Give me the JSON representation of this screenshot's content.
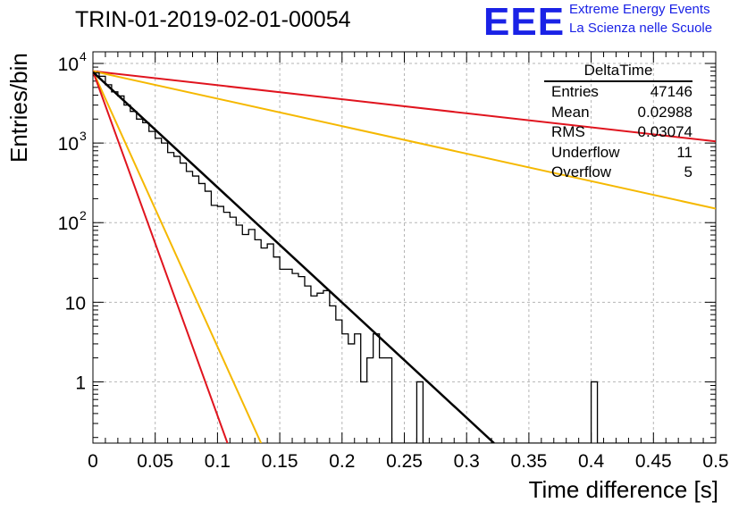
{
  "header": {
    "run_title": "TRIN-01-2019-02-01-00054",
    "logo_text": "EEE",
    "org_line1": "Extreme Energy Events",
    "org_line2": "La Scienza nelle Scuole"
  },
  "stats": {
    "title": "DeltaTime",
    "rows": [
      {
        "label": "Entries",
        "value": "47146"
      },
      {
        "label": "Mean",
        "value": "0.02988"
      },
      {
        "label": "RMS",
        "value": "0.03074"
      },
      {
        "label": "Underflow",
        "value": "11"
      },
      {
        "label": "Overflow",
        "value": "5"
      }
    ]
  },
  "colors": {
    "histogram": "#000000",
    "fit": "#000000",
    "red": "#e0141e",
    "yellow": "#f5b800",
    "grid": "#b5b5b5"
  },
  "chart_data": {
    "type": "line",
    "xlabel": "Time difference [s]",
    "ylabel": "Entries/bin",
    "xlim": [
      0,
      0.5
    ],
    "ylim": [
      0.17,
      14000
    ],
    "log_y": true,
    "grid": true,
    "x_ticks": [
      "0",
      "0.05",
      "0.1",
      "0.15",
      "0.2",
      "0.25",
      "0.3",
      "0.35",
      "0.4",
      "0.45",
      "0.5"
    ],
    "y_ticks": [
      {
        "value": 1,
        "label": "1"
      },
      {
        "value": 10,
        "label": "10"
      },
      {
        "value": 100,
        "label": "10",
        "exp": "2"
      },
      {
        "value": 1000,
        "label": "10",
        "exp": "3"
      },
      {
        "value": 10000,
        "label": "10",
        "exp": "4"
      }
    ],
    "bin_width": 0.005,
    "histogram": [
      7600,
      6900,
      5400,
      4400,
      3900,
      3000,
      2500,
      2000,
      1800,
      1400,
      1150,
      1000,
      760,
      680,
      560,
      440,
      385,
      310,
      248,
      165,
      160,
      135,
      117,
      93,
      71,
      82,
      61,
      48,
      54,
      37,
      26,
      26,
      23,
      21,
      16,
      12,
      13,
      14,
      9,
      6,
      4,
      3,
      4,
      1,
      2,
      4,
      2,
      2,
      0,
      0,
      0,
      0,
      1,
      0,
      0,
      0,
      0,
      0,
      0,
      0,
      0,
      0,
      0,
      0,
      0,
      0,
      0,
      0,
      0,
      0,
      0,
      0,
      0,
      0,
      0,
      0,
      0,
      0,
      0,
      0,
      1,
      0,
      0,
      0,
      0,
      0,
      0,
      0,
      0,
      0,
      0,
      0,
      0,
      0,
      0,
      0,
      0,
      0,
      0,
      0
    ],
    "lines": [
      {
        "color": "red",
        "x": [
          0,
          0.5
        ],
        "y": [
          8000,
          1050
        ]
      },
      {
        "color": "yellow",
        "x": [
          0,
          0.5
        ],
        "y": [
          8000,
          150
        ]
      },
      {
        "color": "black",
        "x": [
          0,
          0.322
        ],
        "y": [
          7800,
          0.17
        ]
      },
      {
        "color": "yellow",
        "x": [
          0,
          0.135
        ],
        "y": [
          8000,
          0.17
        ]
      },
      {
        "color": "red",
        "x": [
          0,
          0.108
        ],
        "y": [
          8000,
          0.17
        ]
      }
    ]
  }
}
